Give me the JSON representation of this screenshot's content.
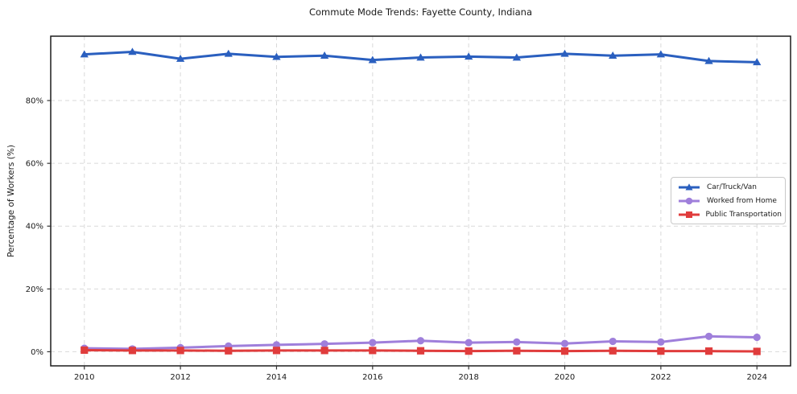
{
  "chart_data": {
    "type": "line",
    "title": "Commute Mode Trends: Fayette County, Indiana",
    "xlabel": "",
    "ylabel": "Percentage of Workers (%)",
    "x": [
      2010,
      2011,
      2012,
      2013,
      2014,
      2015,
      2016,
      2017,
      2018,
      2019,
      2020,
      2021,
      2022,
      2023,
      2024
    ],
    "series": [
      {
        "name": "Car/Truck/Van",
        "color": "#2a5fbf",
        "marker": "triangle",
        "values": [
          94.7,
          95.5,
          93.3,
          94.9,
          93.9,
          94.3,
          92.9,
          93.7,
          94.0,
          93.7,
          94.9,
          94.3,
          94.7,
          92.6,
          92.2
        ]
      },
      {
        "name": "Worked from Home",
        "color": "#9f7fdb",
        "marker": "circle",
        "values": [
          1.1,
          0.9,
          1.3,
          1.8,
          2.2,
          2.5,
          2.9,
          3.5,
          2.9,
          3.1,
          2.6,
          3.3,
          3.1,
          4.9,
          4.6
        ]
      },
      {
        "name": "Public Transportation",
        "color": "#e03c3c",
        "marker": "square",
        "values": [
          0.5,
          0.4,
          0.4,
          0.3,
          0.4,
          0.4,
          0.4,
          0.3,
          0.2,
          0.3,
          0.2,
          0.3,
          0.2,
          0.2,
          0.1
        ]
      }
    ],
    "xticks": {
      "values": [
        2010,
        2012,
        2014,
        2016,
        2018,
        2020,
        2022,
        2024
      ],
      "labels": [
        "2010",
        "2012",
        "2014",
        "2016",
        "2018",
        "2020",
        "2022",
        "2024"
      ]
    },
    "yticks": {
      "values": [
        0,
        20,
        40,
        60,
        80
      ],
      "labels": [
        "0%",
        "20%",
        "40%",
        "60%",
        "80%"
      ]
    },
    "xlim": [
      2009.3,
      2024.7
    ],
    "ylim": [
      -4.5,
      100.5
    ],
    "grid": true,
    "legend_position": "center-right"
  },
  "colors": {
    "grid": "#d9d9d9",
    "spine": "#1c1c1c",
    "tick": "#333333",
    "tick_label": "#1a1a1a",
    "background": "#ffffff"
  }
}
